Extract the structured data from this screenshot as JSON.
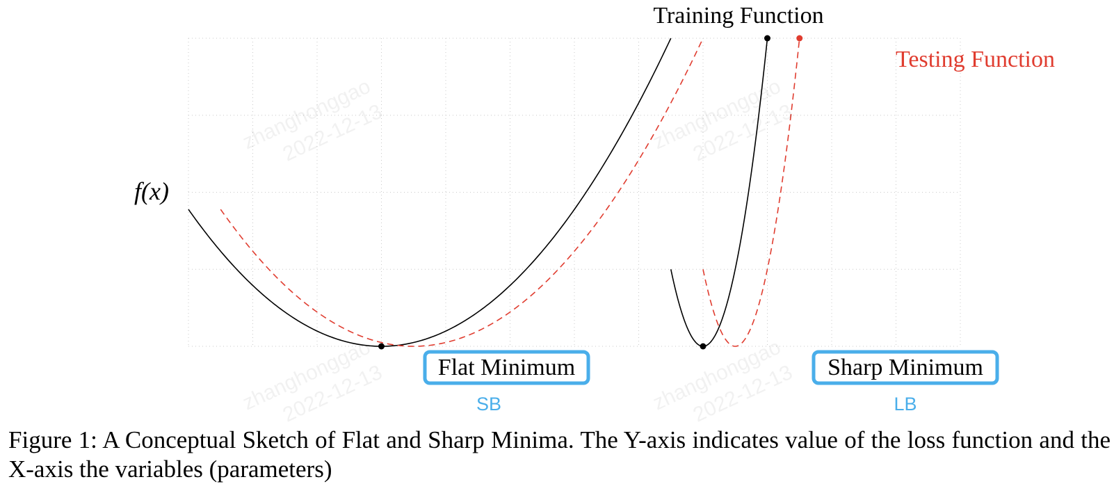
{
  "chart_data": {
    "type": "line",
    "title": "Training Function",
    "ylabel": "f(x)",
    "xlabel": "",
    "xlim": [
      -1,
      11
    ],
    "ylim": [
      0,
      4
    ],
    "grid": true,
    "series": [
      {
        "name": "Training Function",
        "color": "#000000",
        "style": "solid",
        "segments": [
          {
            "shape": "parabola",
            "x_start": -1,
            "x_end": 6.5,
            "x_min": 2.0,
            "y_at_min": 0.0,
            "y_at_end": 4.0
          },
          {
            "shape": "parabola",
            "x_start": 6.5,
            "x_end": 8.0,
            "x_min": 7.0,
            "y_at_min": 0.0,
            "y_at_end": 4.0
          }
        ]
      },
      {
        "name": "Testing Function",
        "color": "#e03c2f",
        "style": "dashed",
        "segments": [
          {
            "shape": "parabola",
            "x_start": -0.5,
            "x_end": 7.0,
            "x_min": 2.5,
            "y_at_min": 0.0,
            "y_at_end": 4.0
          },
          {
            "shape": "parabola",
            "x_start": 7.0,
            "x_end": 8.5,
            "x_min": 7.5,
            "y_at_min": 0.0,
            "y_at_end": 4.0
          }
        ]
      }
    ],
    "points": [
      {
        "name": "flat-minimum-point",
        "x": 2.0,
        "y": 0.0,
        "color": "#000000"
      },
      {
        "name": "sharp-minimum-point",
        "x": 7.0,
        "y": 0.0,
        "color": "#000000"
      },
      {
        "name": "training-end-point",
        "x": 8.0,
        "y": 4.0,
        "color": "#000000"
      },
      {
        "name": "testing-end-point",
        "x": 8.5,
        "y": 4.0,
        "color": "#e03c2f"
      }
    ],
    "legend": {
      "training_label": "Training Function",
      "testing_label": "Testing Function"
    },
    "annotations": {
      "flat_minimum": "Flat Minimum",
      "sharp_minimum": "Sharp Minimum",
      "flat_tag": "SB",
      "sharp_tag": "LB",
      "box_color": "#4aaeea"
    }
  },
  "caption": "Figure 1: A Conceptual Sketch of Flat and Sharp Minima. The Y-axis indicates value of the loss function and the X-axis the variables (parameters)",
  "watermark": {
    "name": "zhanghonggao",
    "date": "2022-12-13"
  }
}
